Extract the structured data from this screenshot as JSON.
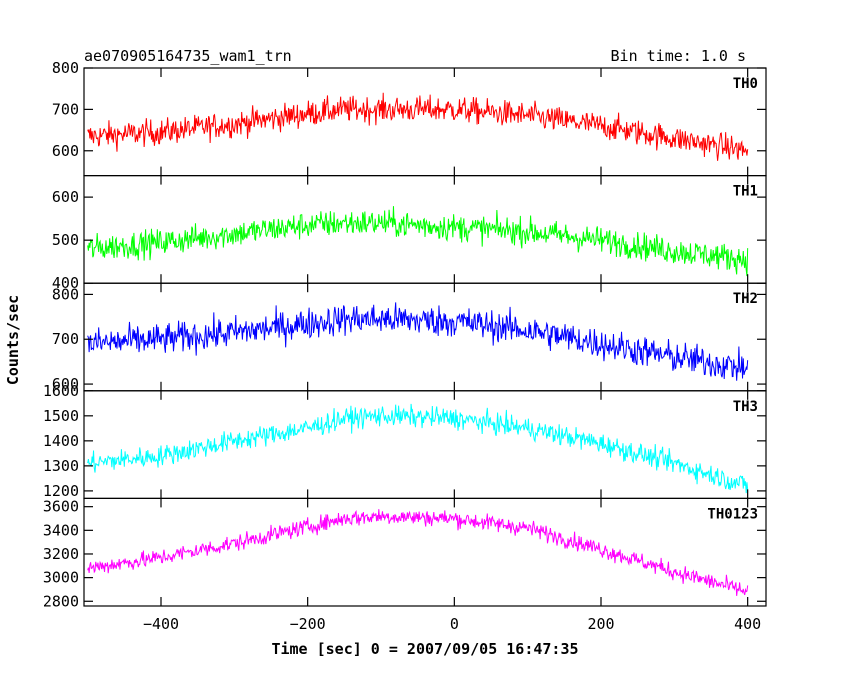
{
  "header": {
    "title_left": "ae070905164735_wam1_trn",
    "title_right": "Bin time: 1.0 s"
  },
  "chart_data": {
    "type": "line",
    "title": "ae070905164735_wam1_trn",
    "subtitle": "Bin time: 1.0 s",
    "xlabel": "Time [sec] 0 = 2007/09/05 16:47:35",
    "ylabel": "Counts/sec",
    "xlim": [
      -505,
      425
    ],
    "x_ticks": [
      -400,
      -200,
      0,
      200,
      400
    ],
    "x_range_data": [
      -500,
      400
    ],
    "bin_time_s": 1.0,
    "grid": false,
    "panels": [
      {
        "name": "TH0",
        "color": "#ff0000",
        "ylim": [
          540,
          800
        ],
        "y_ticks": [
          600,
          700,
          800
        ],
        "trend": {
          "x": [
            -500,
            -400,
            -300,
            -200,
            -150,
            -100,
            0,
            100,
            200,
            300,
            400
          ],
          "y": [
            635,
            645,
            665,
            690,
            700,
            700,
            700,
            685,
            660,
            630,
            600
          ]
        },
        "noise_amplitude": 45
      },
      {
        "name": "TH1",
        "color": "#00ff00",
        "ylim": [
          400,
          650
        ],
        "y_ticks": [
          400,
          500,
          600
        ],
        "trend": {
          "x": [
            -500,
            -400,
            -300,
            -200,
            -150,
            -100,
            0,
            100,
            200,
            300,
            400
          ],
          "y": [
            480,
            495,
            515,
            535,
            540,
            540,
            530,
            520,
            500,
            475,
            455
          ]
        },
        "noise_amplitude": 45
      },
      {
        "name": "TH2",
        "color": "#0000ff",
        "ylim": [
          585,
          825
        ],
        "y_ticks": [
          600,
          700,
          800
        ],
        "trend": {
          "x": [
            -500,
            -400,
            -300,
            -200,
            -150,
            -100,
            0,
            100,
            200,
            300,
            400
          ],
          "y": [
            690,
            700,
            715,
            735,
            745,
            745,
            740,
            720,
            690,
            660,
            635
          ]
        },
        "noise_amplitude": 50
      },
      {
        "name": "TH3",
        "color": "#00ffff",
        "ylim": [
          1170,
          1600
        ],
        "y_ticks": [
          1200,
          1300,
          1400,
          1500,
          1600
        ],
        "trend": {
          "x": [
            -500,
            -400,
            -300,
            -200,
            -150,
            -100,
            0,
            100,
            200,
            300,
            400
          ],
          "y": [
            1310,
            1340,
            1400,
            1450,
            1490,
            1500,
            1490,
            1450,
            1390,
            1310,
            1220
          ]
        },
        "noise_amplitude": 60
      },
      {
        "name": "TH0123",
        "color": "#ff00ff",
        "ylim": [
          2760,
          3670
        ],
        "y_ticks": [
          2800,
          3000,
          3200,
          3400,
          3600
        ],
        "trend": {
          "x": [
            -500,
            -400,
            -300,
            -200,
            -150,
            -100,
            0,
            100,
            200,
            300,
            400
          ],
          "y": [
            3080,
            3170,
            3290,
            3430,
            3500,
            3520,
            3500,
            3420,
            3240,
            3050,
            2880
          ]
        },
        "noise_amplitude": 100
      }
    ]
  }
}
